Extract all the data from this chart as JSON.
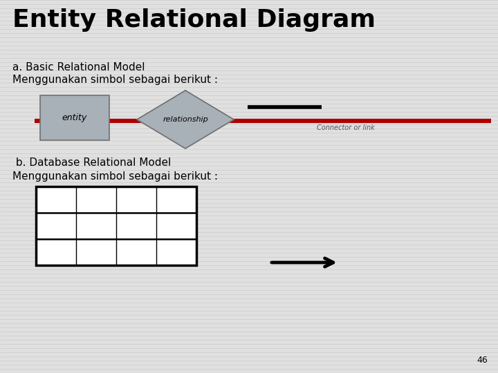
{
  "title": "Entity Relational Diagram",
  "subtitle_a": "a. Basic Relational Model",
  "desc_a": "Menggunakan simbol sebagai berikut :",
  "entity_label": "entity",
  "relationship_label": "relationship",
  "connector_label": "Connector or link",
  "subtitle_b": " b. Database Relational Model",
  "desc_b": "Menggunakan simbol sebagai berikut :",
  "page_number": "46",
  "bg_color": "#e0e0e0",
  "stripe_color": "#cccccc",
  "entity_fill": "#a8b0b8",
  "entity_edge": "#707070",
  "diamond_fill": "#a8b0b8",
  "diamond_edge": "#707070",
  "red_line_color": "#aa0000",
  "black_line_color": "#000000",
  "table_edge_color": "#000000",
  "table_fill": "#ffffff",
  "arrow_color": "#000000",
  "title_fontsize": 26,
  "subtitle_fontsize": 11,
  "desc_fontsize": 11,
  "label_fontsize": 9,
  "connector_label_fontsize": 7,
  "page_fontsize": 9,
  "fig_w": 7.2,
  "fig_h": 5.4,
  "dpi": 100
}
